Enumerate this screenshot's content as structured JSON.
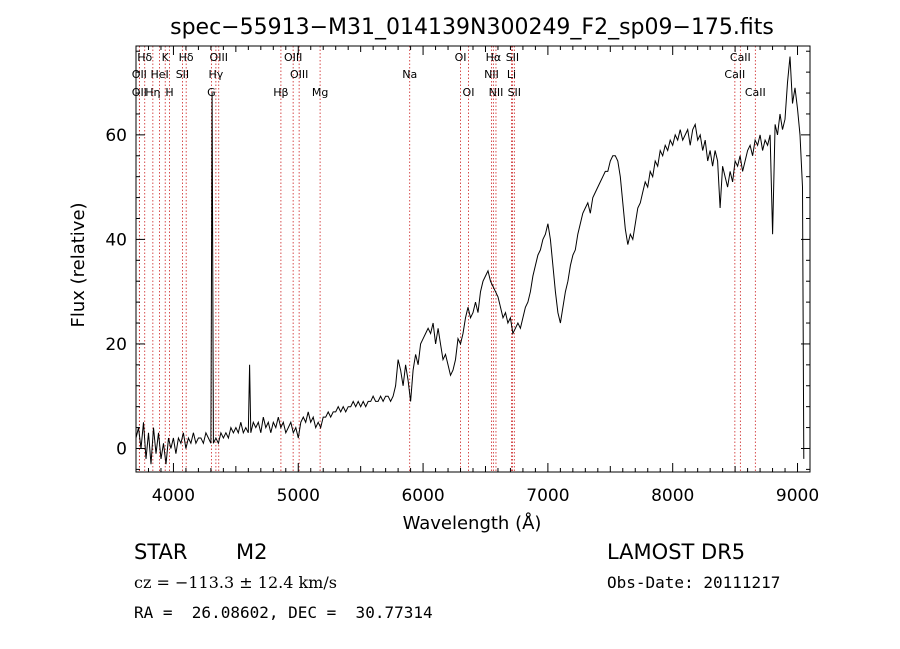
{
  "chart_data": {
    "type": "line",
    "title": "spec−55913−M31_014139N300249_F2_sp09−175.fits",
    "xlabel": "Wavelength (Å)",
    "ylabel": "Flux (relative)",
    "xlim": [
      3700,
      9100
    ],
    "ylim": [
      -4.5,
      77
    ],
    "xticks": [
      4000,
      5000,
      6000,
      7000,
      8000,
      9000
    ],
    "yticks": [
      0,
      20,
      40,
      60
    ],
    "grid": false,
    "series_color": "#000000",
    "line_color": "#cc2222",
    "spectral_lines": [
      {
        "label": "Hδ",
        "x": 3770,
        "row": 1
      },
      {
        "label": "OII",
        "x": 3727,
        "row": 2
      },
      {
        "label": "OII",
        "x": 3727,
        "row": 3
      },
      {
        "label": "K",
        "x": 3934,
        "row": 1
      },
      {
        "label": "HeI",
        "x": 3889,
        "row": 2
      },
      {
        "label": "Hη",
        "x": 3835,
        "row": 3
      },
      {
        "label": "H",
        "x": 3969,
        "row": 3
      },
      {
        "label": "Hδ",
        "x": 4102,
        "row": 1
      },
      {
        "label": "SII",
        "x": 4072,
        "row": 2
      },
      {
        "label": "OIII",
        "x": 4363,
        "row": 1
      },
      {
        "label": "Hγ",
        "x": 4340,
        "row": 2
      },
      {
        "label": "G",
        "x": 4304,
        "row": 3
      },
      {
        "label": "Hβ",
        "x": 4861,
        "row": 3
      },
      {
        "label": "OIII",
        "x": 4959,
        "row": 1
      },
      {
        "label": "OIII",
        "x": 5007,
        "row": 2
      },
      {
        "label": "Mg",
        "x": 5175,
        "row": 3
      },
      {
        "label": "Na",
        "x": 5893,
        "row": 2
      },
      {
        "label": "OI",
        "x": 6300,
        "row": 1
      },
      {
        "label": "OI",
        "x": 6364,
        "row": 3
      },
      {
        "label": "Hα",
        "x": 6563,
        "row": 1
      },
      {
        "label": "NII",
        "x": 6548,
        "row": 2
      },
      {
        "label": "NII",
        "x": 6584,
        "row": 3
      },
      {
        "label": "SII",
        "x": 6716,
        "row": 1
      },
      {
        "label": "Li",
        "x": 6708,
        "row": 2
      },
      {
        "label": "SII",
        "x": 6731,
        "row": 3
      },
      {
        "label": "CaII",
        "x": 8542,
        "row": 1
      },
      {
        "label": "CaII",
        "x": 8498,
        "row": 2
      },
      {
        "label": "CaII",
        "x": 8662,
        "row": 3
      }
    ],
    "spectrum": [
      [
        3700,
        2
      ],
      [
        3720,
        4
      ],
      [
        3740,
        0
      ],
      [
        3760,
        5
      ],
      [
        3780,
        -2
      ],
      [
        3800,
        3
      ],
      [
        3820,
        -3
      ],
      [
        3840,
        4
      ],
      [
        3860,
        -1
      ],
      [
        3880,
        3
      ],
      [
        3900,
        -2
      ],
      [
        3920,
        1
      ],
      [
        3940,
        -3
      ],
      [
        3960,
        2
      ],
      [
        3980,
        0
      ],
      [
        4000,
        2
      ],
      [
        4020,
        -1
      ],
      [
        4040,
        2
      ],
      [
        4060,
        1
      ],
      [
        4080,
        3
      ],
      [
        4100,
        0
      ],
      [
        4120,
        2
      ],
      [
        4140,
        1
      ],
      [
        4160,
        3
      ],
      [
        4180,
        1
      ],
      [
        4200,
        2
      ],
      [
        4220,
        2
      ],
      [
        4240,
        1
      ],
      [
        4260,
        3
      ],
      [
        4280,
        2
      ],
      [
        4300,
        1
      ],
      [
        4310,
        68
      ],
      [
        4320,
        1
      ],
      [
        4340,
        2
      ],
      [
        4360,
        1
      ],
      [
        4380,
        3
      ],
      [
        4400,
        2
      ],
      [
        4420,
        3
      ],
      [
        4440,
        2
      ],
      [
        4460,
        4
      ],
      [
        4480,
        3
      ],
      [
        4500,
        4
      ],
      [
        4520,
        3
      ],
      [
        4540,
        5
      ],
      [
        4560,
        3
      ],
      [
        4580,
        4
      ],
      [
        4600,
        3
      ],
      [
        4610,
        16
      ],
      [
        4620,
        3
      ],
      [
        4640,
        5
      ],
      [
        4660,
        4
      ],
      [
        4680,
        5
      ],
      [
        4700,
        3
      ],
      [
        4720,
        6
      ],
      [
        4740,
        4
      ],
      [
        4760,
        5
      ],
      [
        4780,
        3
      ],
      [
        4800,
        5
      ],
      [
        4820,
        4
      ],
      [
        4840,
        6
      ],
      [
        4860,
        4
      ],
      [
        4880,
        5
      ],
      [
        4900,
        3
      ],
      [
        4920,
        4
      ],
      [
        4940,
        5
      ],
      [
        4960,
        3
      ],
      [
        4980,
        4
      ],
      [
        5000,
        2
      ],
      [
        5020,
        5
      ],
      [
        5040,
        6
      ],
      [
        5060,
        5
      ],
      [
        5080,
        7
      ],
      [
        5100,
        5
      ],
      [
        5120,
        6
      ],
      [
        5140,
        4
      ],
      [
        5160,
        5
      ],
      [
        5180,
        4
      ],
      [
        5200,
        6
      ],
      [
        5220,
        6
      ],
      [
        5240,
        7
      ],
      [
        5260,
        6
      ],
      [
        5280,
        7
      ],
      [
        5300,
        7
      ],
      [
        5320,
        8
      ],
      [
        5340,
        7
      ],
      [
        5360,
        8
      ],
      [
        5380,
        7
      ],
      [
        5400,
        8
      ],
      [
        5420,
        8
      ],
      [
        5440,
        9
      ],
      [
        5460,
        8
      ],
      [
        5480,
        9
      ],
      [
        5500,
        8
      ],
      [
        5520,
        9
      ],
      [
        5540,
        8
      ],
      [
        5560,
        9
      ],
      [
        5580,
        9
      ],
      [
        5600,
        10
      ],
      [
        5620,
        9
      ],
      [
        5640,
        9
      ],
      [
        5660,
        10
      ],
      [
        5680,
        9
      ],
      [
        5700,
        10
      ],
      [
        5720,
        10
      ],
      [
        5740,
        9
      ],
      [
        5760,
        10
      ],
      [
        5780,
        12
      ],
      [
        5800,
        17
      ],
      [
        5820,
        15
      ],
      [
        5840,
        12
      ],
      [
        5860,
        16
      ],
      [
        5880,
        13
      ],
      [
        5900,
        9
      ],
      [
        5920,
        15
      ],
      [
        5940,
        18
      ],
      [
        5960,
        16
      ],
      [
        5980,
        20
      ],
      [
        6000,
        21
      ],
      [
        6020,
        22
      ],
      [
        6040,
        23
      ],
      [
        6060,
        22
      ],
      [
        6080,
        24
      ],
      [
        6100,
        20
      ],
      [
        6120,
        23
      ],
      [
        6140,
        20
      ],
      [
        6160,
        17
      ],
      [
        6180,
        18
      ],
      [
        6200,
        16
      ],
      [
        6220,
        14
      ],
      [
        6240,
        15
      ],
      [
        6260,
        17
      ],
      [
        6280,
        21
      ],
      [
        6300,
        20
      ],
      [
        6320,
        22
      ],
      [
        6340,
        25
      ],
      [
        6360,
        27
      ],
      [
        6380,
        25
      ],
      [
        6400,
        26
      ],
      [
        6420,
        28
      ],
      [
        6440,
        26
      ],
      [
        6460,
        30
      ],
      [
        6480,
        32
      ],
      [
        6500,
        33
      ],
      [
        6520,
        34
      ],
      [
        6540,
        32
      ],
      [
        6560,
        31
      ],
      [
        6580,
        30
      ],
      [
        6600,
        29
      ],
      [
        6620,
        27
      ],
      [
        6640,
        25
      ],
      [
        6660,
        26
      ],
      [
        6680,
        24
      ],
      [
        6700,
        25
      ],
      [
        6720,
        22
      ],
      [
        6740,
        23
      ],
      [
        6760,
        24
      ],
      [
        6780,
        23
      ],
      [
        6800,
        25
      ],
      [
        6820,
        27
      ],
      [
        6840,
        28
      ],
      [
        6860,
        30
      ],
      [
        6880,
        33
      ],
      [
        6900,
        35
      ],
      [
        6920,
        37
      ],
      [
        6940,
        38
      ],
      [
        6960,
        40
      ],
      [
        6980,
        41
      ],
      [
        7000,
        43
      ],
      [
        7020,
        40
      ],
      [
        7040,
        35
      ],
      [
        7060,
        30
      ],
      [
        7080,
        26
      ],
      [
        7100,
        24
      ],
      [
        7120,
        27
      ],
      [
        7140,
        30
      ],
      [
        7160,
        32
      ],
      [
        7180,
        35
      ],
      [
        7200,
        37
      ],
      [
        7220,
        38
      ],
      [
        7240,
        41
      ],
      [
        7260,
        43
      ],
      [
        7280,
        45
      ],
      [
        7300,
        46
      ],
      [
        7320,
        47
      ],
      [
        7340,
        45
      ],
      [
        7360,
        48
      ],
      [
        7380,
        49
      ],
      [
        7400,
        50
      ],
      [
        7420,
        51
      ],
      [
        7440,
        52
      ],
      [
        7460,
        53
      ],
      [
        7480,
        53
      ],
      [
        7500,
        55
      ],
      [
        7520,
        56
      ],
      [
        7540,
        56
      ],
      [
        7560,
        55
      ],
      [
        7580,
        52
      ],
      [
        7600,
        47
      ],
      [
        7620,
        42
      ],
      [
        7640,
        39
      ],
      [
        7660,
        41
      ],
      [
        7680,
        40
      ],
      [
        7700,
        43
      ],
      [
        7720,
        46
      ],
      [
        7740,
        47
      ],
      [
        7760,
        49
      ],
      [
        7780,
        51
      ],
      [
        7800,
        50
      ],
      [
        7820,
        53
      ],
      [
        7840,
        52
      ],
      [
        7860,
        55
      ],
      [
        7880,
        54
      ],
      [
        7900,
        57
      ],
      [
        7920,
        56
      ],
      [
        7940,
        58
      ],
      [
        7960,
        57
      ],
      [
        7980,
        59
      ],
      [
        8000,
        58
      ],
      [
        8020,
        60
      ],
      [
        8040,
        59
      ],
      [
        8060,
        61
      ],
      [
        8080,
        59
      ],
      [
        8100,
        60
      ],
      [
        8120,
        61
      ],
      [
        8140,
        58
      ],
      [
        8160,
        61
      ],
      [
        8180,
        62
      ],
      [
        8200,
        59
      ],
      [
        8220,
        60
      ],
      [
        8240,
        57
      ],
      [
        8260,
        59
      ],
      [
        8280,
        55
      ],
      [
        8300,
        57
      ],
      [
        8320,
        54
      ],
      [
        8340,
        57
      ],
      [
        8360,
        55
      ],
      [
        8380,
        46
      ],
      [
        8400,
        54
      ],
      [
        8420,
        52
      ],
      [
        8440,
        50
      ],
      [
        8460,
        53
      ],
      [
        8480,
        51
      ],
      [
        8500,
        55
      ],
      [
        8520,
        54
      ],
      [
        8540,
        56
      ],
      [
        8560,
        53
      ],
      [
        8580,
        55
      ],
      [
        8600,
        57
      ],
      [
        8620,
        58
      ],
      [
        8640,
        56
      ],
      [
        8660,
        59
      ],
      [
        8680,
        58
      ],
      [
        8700,
        60
      ],
      [
        8720,
        57
      ],
      [
        8740,
        59
      ],
      [
        8760,
        58
      ],
      [
        8780,
        60
      ],
      [
        8800,
        41
      ],
      [
        8820,
        62
      ],
      [
        8840,
        60
      ],
      [
        8860,
        64
      ],
      [
        8880,
        61
      ],
      [
        8900,
        63
      ],
      [
        8920,
        70
      ],
      [
        8940,
        75
      ],
      [
        8960,
        66
      ],
      [
        8980,
        69
      ],
      [
        9000,
        65
      ],
      [
        9020,
        60
      ],
      [
        9040,
        50
      ],
      [
        9050,
        -2
      ]
    ]
  },
  "info": {
    "class": "STAR",
    "subclass": "M2",
    "survey": "LAMOST DR5",
    "redshift": "cz = −113.3 ± 12.4 km/s",
    "obsdate": "Obs-Date: 20111217",
    "coords": "RA =  26.08602, DEC =  30.77314"
  }
}
